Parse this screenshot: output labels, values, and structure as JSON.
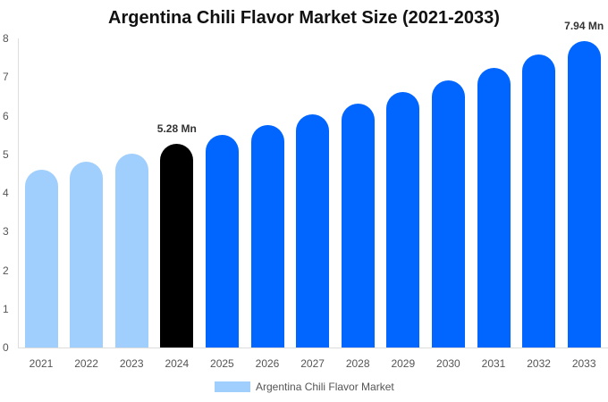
{
  "chart_data": {
    "type": "bar",
    "title": "Argentina Chili Flavor Market Size (2021-2033)",
    "xlabel": "",
    "ylabel": "",
    "ylim": [
      0,
      8
    ],
    "yticks": [
      0,
      1,
      2,
      3,
      4,
      5,
      6,
      7,
      8
    ],
    "grid": false,
    "legend_position": "bottom",
    "categories": [
      "2021",
      "2022",
      "2023",
      "2024",
      "2025",
      "2026",
      "2027",
      "2028",
      "2029",
      "2030",
      "2031",
      "2032",
      "2033"
    ],
    "series": [
      {
        "name": "Argentina Chili Flavor Market",
        "values": [
          4.6,
          4.81,
          5.02,
          5.28,
          5.5,
          5.76,
          6.03,
          6.31,
          6.61,
          6.91,
          7.24,
          7.58,
          7.94
        ]
      }
    ],
    "bar_colors": [
      "#a0cffd",
      "#a0cffd",
      "#a0cffd",
      "#000000",
      "#0066ff",
      "#0066ff",
      "#0066ff",
      "#0066ff",
      "#0066ff",
      "#0066ff",
      "#0066ff",
      "#0066ff",
      "#0066ff"
    ],
    "annotations": [
      {
        "category": "2024",
        "text": "5.28 Mn"
      },
      {
        "category": "2033",
        "text": "7.94 Mn"
      }
    ]
  },
  "legend": {
    "label": "Argentina Chili Flavor Market",
    "color": "#a0cffd"
  }
}
